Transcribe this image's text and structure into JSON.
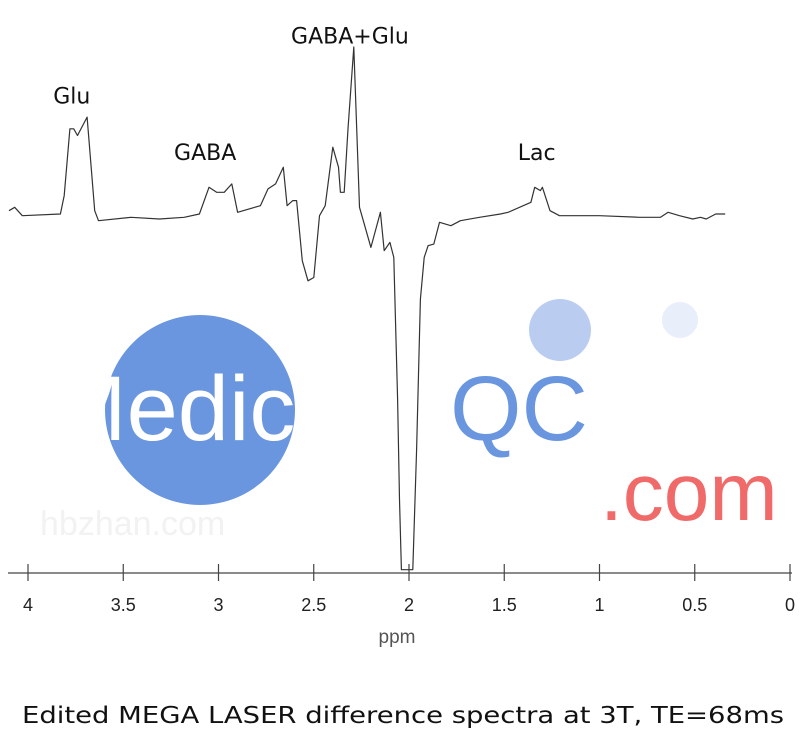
{
  "chart_data": {
    "type": "line",
    "title": "",
    "caption": "Edited MEGA LASER difference spectra at 3T, TE=68ms",
    "xlabel": "ppm",
    "ylabel": "",
    "xlim": [
      4.1,
      0
    ],
    "x_reversed": true,
    "xticks": [
      4,
      3.5,
      3,
      2.5,
      2,
      1.5,
      1,
      0.5,
      0
    ],
    "xtick_labels": [
      "4",
      "3.5",
      "3",
      "2.5",
      "2",
      "1.5",
      "1",
      "0.5",
      "0"
    ],
    "y_axis_shown": false,
    "y_units": "relative intensity (GABA+Glu peak = 1)",
    "grid": false,
    "line_color": "#333333",
    "series": [
      {
        "points": [
          [
            4.1,
            0.02
          ],
          [
            4.07,
            0.04
          ],
          [
            4.03,
            -0.01
          ],
          [
            3.83,
            0
          ],
          [
            3.81,
            0.11
          ],
          [
            3.78,
            0.51
          ],
          [
            3.76,
            0.51
          ],
          [
            3.74,
            0.47
          ],
          [
            3.69,
            0.58
          ],
          [
            3.65,
            0.02
          ],
          [
            3.63,
            -0.04
          ],
          [
            3.46,
            -0.02
          ],
          [
            3.31,
            -0.03
          ],
          [
            3.18,
            -0.02
          ],
          [
            3.1,
            0
          ],
          [
            3.05,
            0.16
          ],
          [
            3.01,
            0.13
          ],
          [
            2.97,
            0.13
          ],
          [
            2.93,
            0.18
          ],
          [
            2.9,
            0.01
          ],
          [
            2.78,
            0.05
          ],
          [
            2.74,
            0.15
          ],
          [
            2.7,
            0.18
          ],
          [
            2.66,
            0.28
          ],
          [
            2.64,
            0.05
          ],
          [
            2.61,
            0.08
          ],
          [
            2.59,
            0.08
          ],
          [
            2.56,
            -0.28
          ],
          [
            2.53,
            -0.4
          ],
          [
            2.5,
            -0.38
          ],
          [
            2.47,
            -0.01
          ],
          [
            2.44,
            0.05
          ],
          [
            2.4,
            0.4
          ],
          [
            2.37,
            0.28
          ],
          [
            2.36,
            0.13
          ],
          [
            2.34,
            0.13
          ],
          [
            2.32,
            0.51
          ],
          [
            2.29,
            1.0
          ],
          [
            2.26,
            0.04
          ],
          [
            2.2,
            -0.2
          ],
          [
            2.15,
            0.01
          ],
          [
            2.13,
            -0.22
          ],
          [
            2.1,
            -0.17
          ],
          [
            2.08,
            -0.26
          ],
          [
            2.06,
            -1.11
          ],
          [
            2.05,
            -1.71
          ],
          [
            2.04,
            -2.13
          ],
          [
            1.98,
            -2.13
          ],
          [
            1.96,
            -1.41
          ],
          [
            1.94,
            -0.51
          ],
          [
            1.92,
            -0.26
          ],
          [
            1.9,
            -0.19
          ],
          [
            1.87,
            -0.18
          ],
          [
            1.84,
            -0.05
          ],
          [
            1.78,
            -0.07
          ],
          [
            1.73,
            -0.04
          ],
          [
            1.63,
            -0.02
          ],
          [
            1.52,
            0
          ],
          [
            1.48,
            0.01
          ],
          [
            1.36,
            0.07
          ],
          [
            1.34,
            0.16
          ],
          [
            1.31,
            0.14
          ],
          [
            1.3,
            0.16
          ],
          [
            1.26,
            0.02
          ],
          [
            1.21,
            -0.01
          ],
          [
            1.0,
            -0.01
          ],
          [
            0.79,
            -0.02
          ],
          [
            0.68,
            -0.02
          ],
          [
            0.64,
            0.01
          ],
          [
            0.58,
            -0.01
          ],
          [
            0.51,
            -0.03
          ],
          [
            0.47,
            -0.02
          ],
          [
            0.44,
            -0.03
          ],
          [
            0.39,
            0
          ],
          [
            0.34,
            0
          ]
        ]
      }
    ],
    "annotations": [
      {
        "text": "Glu",
        "x": 3.77,
        "y": 0.71
      },
      {
        "text": "GABA",
        "x": 3.07,
        "y": 0.37
      },
      {
        "text": "GABA+Glu",
        "x": 2.31,
        "y": 1.07
      },
      {
        "text": "Lac",
        "x": 1.33,
        "y": 0.37
      }
    ]
  },
  "watermark": {
    "logo_main": "Medical",
    "logo_accent": "QC",
    "logo_suffix": ".com",
    "faint_text": "hbzhan.com",
    "colors": {
      "blue": "#6a96e0",
      "light_blue": "#b3c8ef",
      "pale_blue": "#e8eefa",
      "red": "#f06a6a"
    }
  }
}
